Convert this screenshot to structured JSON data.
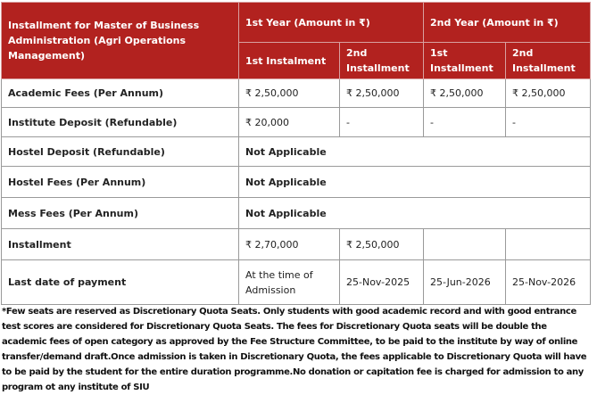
{
  "header": {
    "program": "Installment for Master of Business Administration (Agri Operations Management)",
    "year1": "1st Year (Amount in ₹)",
    "year2": "2nd Year (Amount in ₹)",
    "y1_inst1": "1st Instalment",
    "y1_inst2": "2nd Installment",
    "y2_inst1": "1st Installment",
    "y2_inst2": "2nd Installment"
  },
  "rows": [
    {
      "label": "Academic Fees (Per Annum)",
      "cells": [
        "₹ 2,50,000",
        "₹ 2,50,000",
        "₹ 2,50,000",
        "₹ 2,50,000"
      ]
    },
    {
      "label": "Institute Deposit (Refundable)",
      "cells": [
        "₹ 20,000",
        "-",
        "-",
        "-"
      ]
    },
    {
      "label": "Hostel Deposit (Refundable)",
      "merged": "Not Applicable"
    },
    {
      "label": "Hostel Fees (Per Annum)",
      "merged": "Not Applicable"
    },
    {
      "label": "Mess Fees (Per Annum)",
      "merged": "Not Applicable"
    },
    {
      "label": "Installment",
      "cells": [
        "₹ 2,70,000",
        "₹ 2,50,000",
        "",
        ""
      ]
    },
    {
      "label": "Last date of payment",
      "cells": [
        "At the time of Admission",
        "25-Nov-2025",
        "25-Jun-2026",
        "25-Nov-2026"
      ]
    }
  ],
  "footnote": "*Few seats are reserved as Discretionary Quota Seats. Only students with good academic record and with good entrance test scores are considered for Discretionary Quota Seats. The fees for Discretionary Quota seats will be double the academic fees of open category as approved by the Fee Structure Committee, to be paid to the institute by way of online transfer/demand draft.Once admission is taken in Discretionary Quota, the fees applicable to Discretionary Quota will have to be paid by the student for the entire duration programme.No donation or capitation fee is charged for admission to any program ot any institute of SIU",
  "colors": {
    "header_bg": "#b2221f"
  }
}
